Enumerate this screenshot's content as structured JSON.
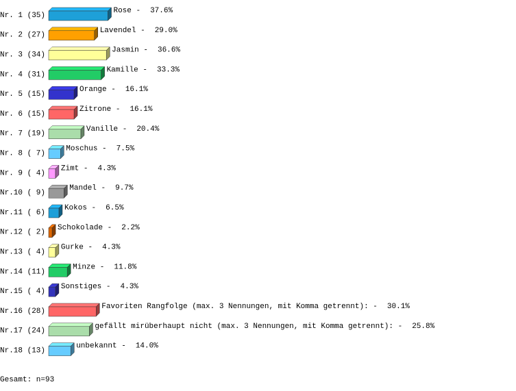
{
  "chart_data": {
    "type": "bar",
    "orientation": "horizontal",
    "categories": [
      "Nr. 1 (35)",
      "Nr. 2 (27)",
      "Nr. 3 (34)",
      "Nr. 4 (31)",
      "Nr. 5 (15)",
      "Nr. 6 (15)",
      "Nr. 7 (19)",
      "Nr. 8 ( 7)",
      "Nr. 9 ( 4)",
      "Nr.10 ( 9)",
      "Nr.11 ( 6)",
      "Nr.12 ( 2)",
      "Nr.13 ( 4)",
      "Nr.14 (11)",
      "Nr.15 ( 4)",
      "Nr.16 (28)",
      "Nr.17 (24)",
      "Nr.18 (13)"
    ],
    "names": [
      "Rose -",
      "Lavendel -",
      "Jasmin -",
      "Kamille -",
      "Orange -",
      "Zitrone -",
      "Vanille -",
      "Moschus -",
      "Zimt -",
      "Mandel -",
      "Kokos -",
      "Schokolade -",
      "Gurke -",
      "Minze -",
      "Sonstiges -",
      "Favoriten Rangfolge (max. 3 Nennungen, mit Komma getrennt): -",
      "gefällt mirüberhaupt nicht (max. 3 Nennungen, mit Komma getrennt): -",
      "unbekannt -"
    ],
    "values": [
      37.6,
      29.0,
      36.6,
      33.3,
      16.1,
      16.1,
      20.4,
      7.5,
      4.3,
      9.7,
      6.5,
      2.2,
      4.3,
      11.8,
      4.3,
      30.1,
      25.8,
      14.0
    ],
    "value_labels": [
      "37.6%",
      "29.0%",
      "36.6%",
      "33.3%",
      "16.1%",
      "16.1%",
      "20.4%",
      "7.5%",
      "4.3%",
      "9.7%",
      "6.5%",
      "2.2%",
      "4.3%",
      "11.8%",
      "4.3%",
      "30.1%",
      "25.8%",
      "14.0%"
    ],
    "colors": [
      "#1ea0d8",
      "#ffa000",
      "#ffff99",
      "#22cc66",
      "#3333cc",
      "#ff6666",
      "#aaddaa",
      "#66ccff",
      "#ff99ff",
      "#999999",
      "#1e9fd8",
      "#dd6600",
      "#ffff99",
      "#22cc66",
      "#3333bb",
      "#ff6666",
      "#aaddaa",
      "#66ccff"
    ],
    "footer": "Gesamt: n=93"
  }
}
